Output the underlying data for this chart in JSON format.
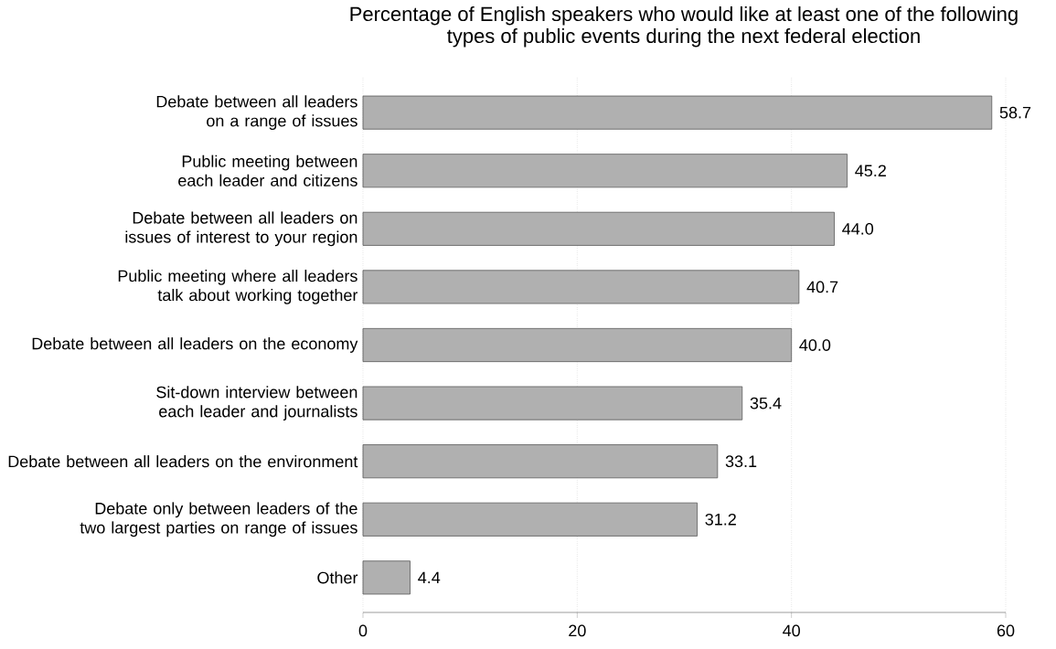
{
  "chart_data": {
    "type": "bar",
    "orientation": "horizontal",
    "title": "Percentage of English speakers who would like at least one of the following types of public events during the next federal election",
    "categories": [
      "Debate between all leaders on a range of issues",
      "Public meeting between each leader and citizens",
      "Debate between all leaders on issues of interest to your region",
      "Public meeting where all leaders talk about working together",
      "Debate between all leaders on the economy",
      "Sit-down interview between each leader and journalists",
      "Debate between all leaders on the environment",
      "Debate only between leaders of the two largest parties on range of issues",
      "Other"
    ],
    "values": [
      58.7,
      45.2,
      44.0,
      40.7,
      40.0,
      35.4,
      33.1,
      31.2,
      4.4
    ],
    "color": "#b0b0b0",
    "xlim": [
      0,
      60
    ],
    "xticks": [
      0,
      20,
      40,
      60
    ],
    "value_labels": [
      "58.7",
      "45.2",
      "44.0",
      "40.7",
      "40.0",
      "35.4",
      "33.1",
      "31.2",
      "4.4"
    ],
    "grid": "x"
  }
}
